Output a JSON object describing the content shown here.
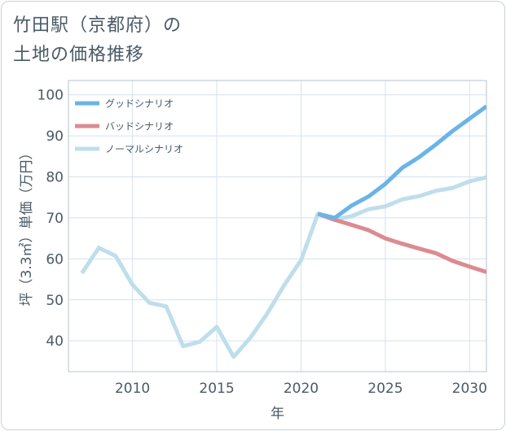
{
  "title_line1": "竹田駅（京都府）の",
  "title_line2": "土地の価格推移",
  "chart_data": {
    "type": "line",
    "xlabel": "年",
    "ylabel": "坪（3.3㎡）単価（万円）",
    "xlim": [
      2006.2,
      2031
    ],
    "ylim": [
      32.5,
      103.5
    ],
    "x_ticks": [
      2010,
      2015,
      2020,
      2025,
      2030
    ],
    "y_ticks": [
      40,
      50,
      60,
      70,
      80,
      90,
      100
    ],
    "grid": true,
    "legend_position": "top-left",
    "series": [
      {
        "name": "グッドシナリオ",
        "color": "#6ab4e6",
        "x": [
          2021,
          2022,
          2023,
          2024,
          2025,
          2026,
          2027,
          2028,
          2029,
          2030,
          2031
        ],
        "y": [
          71,
          70.0,
          73.0,
          75.2,
          78.3,
          82.2,
          84.8,
          87.9,
          91.2,
          94.2,
          97.2
        ]
      },
      {
        "name": "バッドシナリオ",
        "color": "#db8b91",
        "x": [
          2021,
          2022,
          2023,
          2024,
          2025,
          2026,
          2027,
          2028,
          2029,
          2030,
          2031
        ],
        "y": [
          71,
          69.5,
          68.3,
          67.0,
          65.0,
          63.7,
          62.5,
          61.4,
          59.5,
          58.1,
          56.8
        ]
      },
      {
        "name": "ノーマルシナリオ",
        "color": "#bfdeec",
        "x": [
          2007,
          2008,
          2009,
          2010,
          2011,
          2012,
          2013,
          2014,
          2015,
          2016,
          2017,
          2018,
          2019,
          2020,
          2021,
          2022,
          2023,
          2024,
          2025,
          2026,
          2027,
          2028,
          2029,
          2030,
          2031
        ],
        "y": [
          56.5,
          62.7,
          60.7,
          53.7,
          49.3,
          48.4,
          38.7,
          39.8,
          43.4,
          36.1,
          40.8,
          46.7,
          53.6,
          59.7,
          71.0,
          69.6,
          70.4,
          72.1,
          72.8,
          74.5,
          75.3,
          76.6,
          77.3,
          78.9,
          79.9
        ]
      }
    ]
  }
}
